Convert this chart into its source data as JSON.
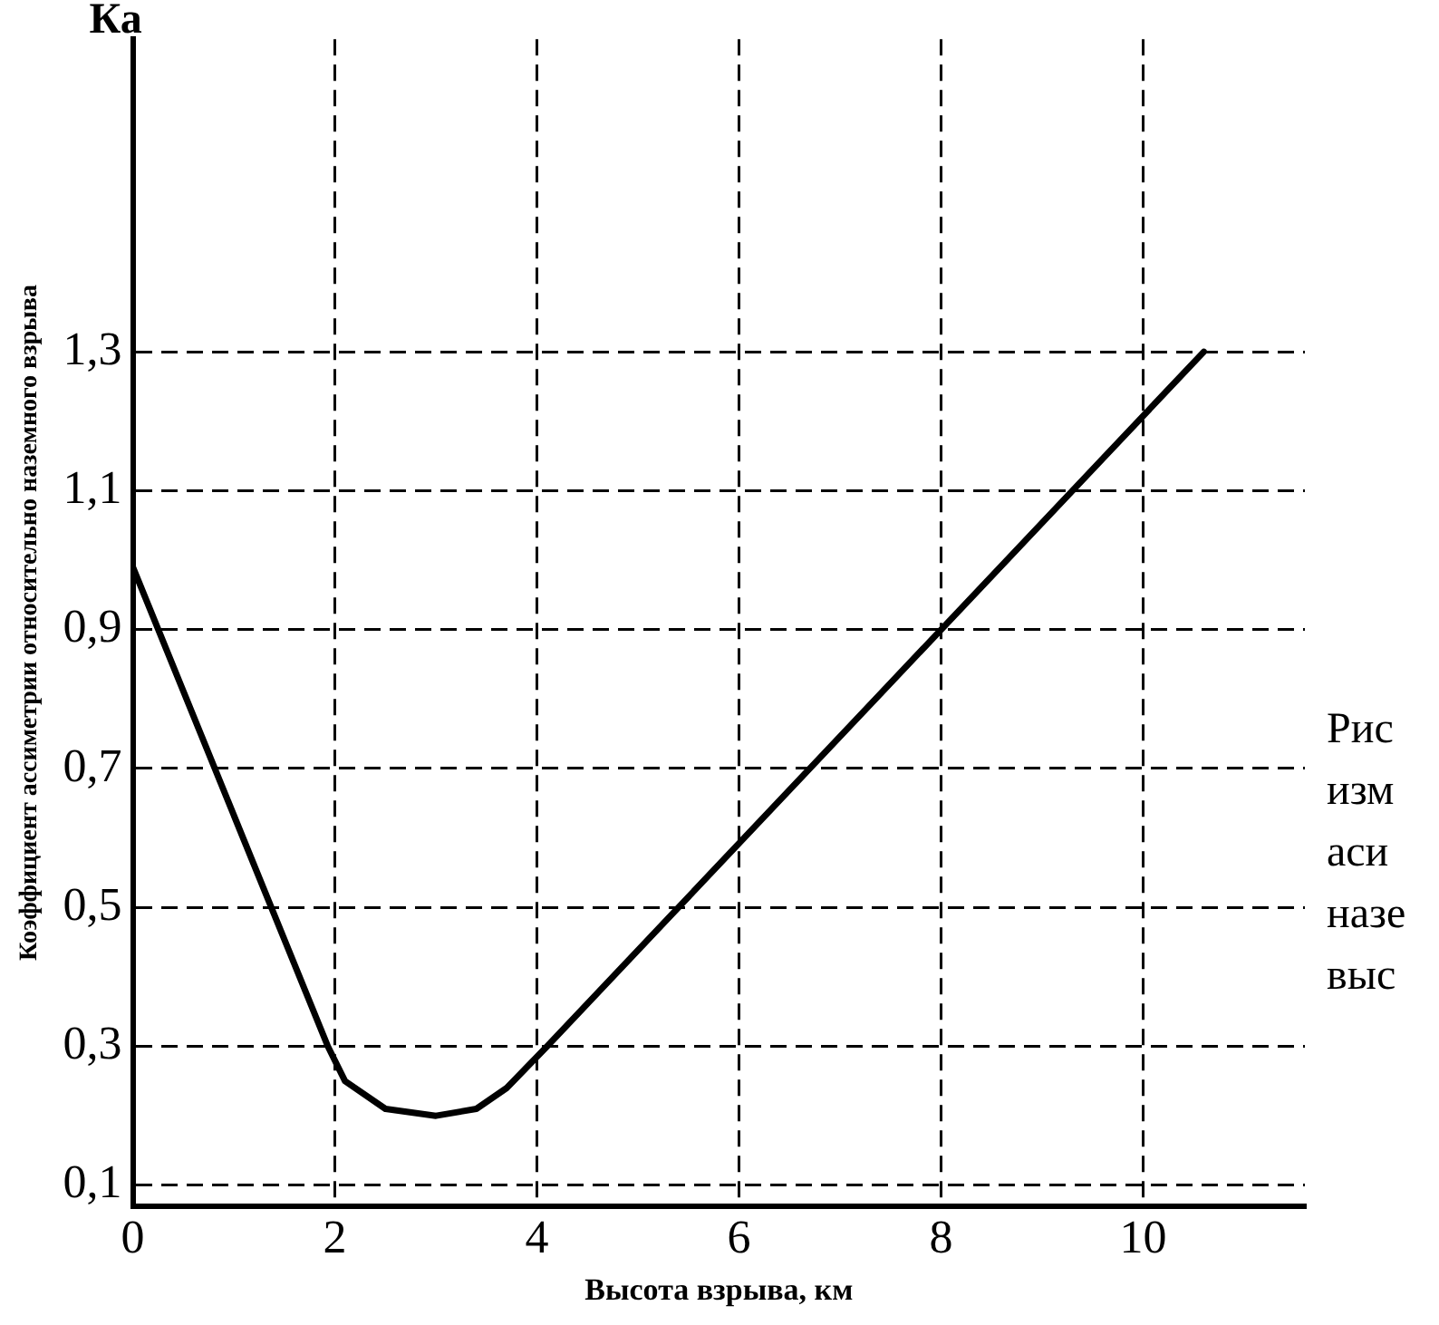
{
  "chart_data": {
    "type": "line",
    "ylabel": "Коэффициент ассиметрии относительно наземного взрыва",
    "xlabel": "Высота взрыва, км",
    "annotations": [
      "Ка",
      "Рис",
      "изм",
      "аси",
      "назе",
      "выс"
    ],
    "x": [
      0,
      1.93,
      2.1,
      2.5,
      3.0,
      3.4,
      3.7,
      4.1,
      10.6
    ],
    "series": [
      {
        "color": "#000000",
        "values": [
          0.99,
          0.3,
          0.25,
          0.21,
          0.2,
          0.21,
          0.24,
          0.3,
          1.3
        ]
      }
    ],
    "xlim": [
      0,
      11.6
    ],
    "ylim": [
      0.07,
      1.75
    ],
    "xticks": [
      0,
      2,
      4,
      6,
      8,
      10
    ],
    "yticks": [
      {
        "value": 0.1,
        "label": "0,1"
      },
      {
        "value": 0.3,
        "label": "0,3"
      },
      {
        "value": 0.5,
        "label": "0,5"
      },
      {
        "value": 0.7,
        "label": "0,7"
      },
      {
        "value": 0.9,
        "label": "0,9"
      },
      {
        "value": 1.1,
        "label": "1,1"
      },
      {
        "value": 1.3,
        "label": "1,3"
      }
    ],
    "grid": true,
    "legend": false,
    "marker": "none",
    "line_style": "solid"
  }
}
